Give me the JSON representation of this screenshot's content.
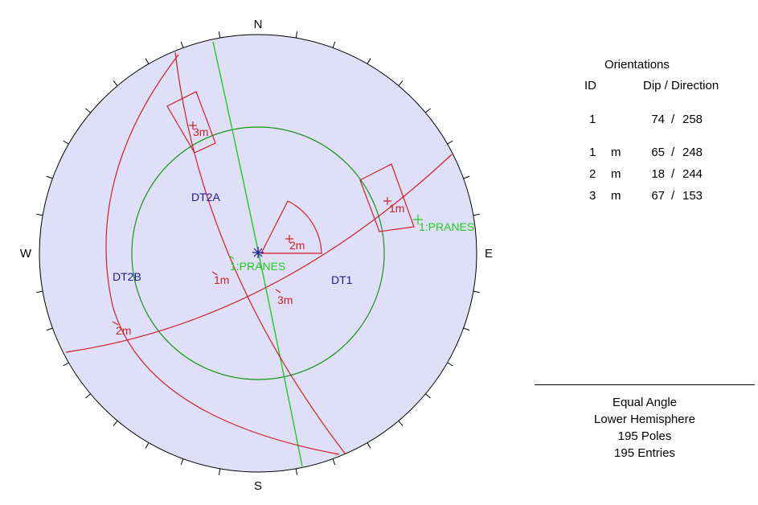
{
  "stereonet": {
    "compass": {
      "north": "N",
      "south": "S",
      "east": "E",
      "west": "W"
    },
    "labels": {
      "dt2a": "DT2A",
      "dt2b": "DT2B",
      "dt1": "DT1",
      "pranes_center": "1:PRANES",
      "pranes_east": "1:PRANES",
      "plane_1m": "1m",
      "plane_2m": "2m",
      "plane_3m": "3m",
      "pole_1m": "1m",
      "pole_2m": "2m",
      "pole_3m": "3m"
    },
    "colors": {
      "net_fill": "#dfdff7",
      "joint_sets": "#d01f28",
      "friction_circle": "#119611",
      "slope_face": "#22cc22",
      "zone_labels": "#1a1aa0",
      "outline": "#000000"
    }
  },
  "orientations": {
    "title": "Orientations",
    "header_id": "ID",
    "header_dip_direction": "Dip / Direction",
    "rows": [
      {
        "id": "1",
        "type": "",
        "dip": "74",
        "sep": "/",
        "direction": "258"
      },
      {
        "id": "1",
        "type": "m",
        "dip": "65",
        "sep": "/",
        "direction": "248"
      },
      {
        "id": "2",
        "type": "m",
        "dip": "18",
        "sep": "/",
        "direction": "244"
      },
      {
        "id": "3",
        "type": "m",
        "dip": "67",
        "sep": "/",
        "direction": "153"
      }
    ]
  },
  "projection_info": {
    "projection": "Equal Angle",
    "hemisphere": "Lower Hemisphere",
    "poles": "195 Poles",
    "entries": "195 Entries"
  }
}
